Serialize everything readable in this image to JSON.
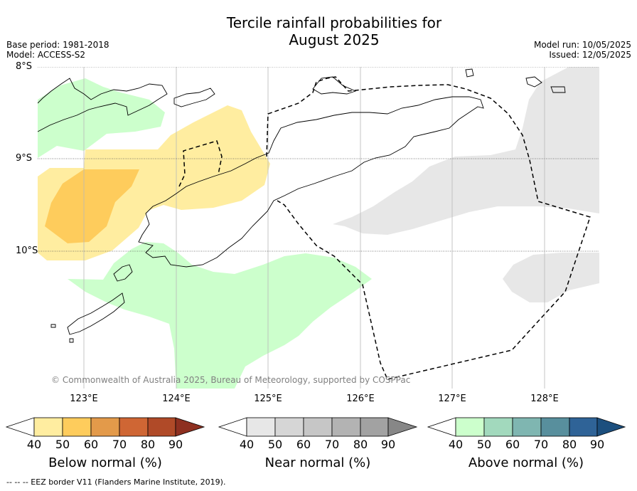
{
  "header": {
    "title_line1": "Tercile rainfall probabilities for",
    "title_line2": "August 2025",
    "base_period": "Base period: 1981-2018",
    "model": "Model: ACCESS-S2",
    "model_run": "Model run: 10/05/2025",
    "issued": "Issued: 12/05/2025"
  },
  "map": {
    "lat_labels": [
      "8°S",
      "9°S",
      "10°S"
    ],
    "lon_labels": [
      "123°E",
      "124°E",
      "125°E",
      "126°E",
      "127°E",
      "128°E"
    ],
    "copyright": "© Commonwealth of Australia 2025, Bureau of Meteorology, supported by COSPPac",
    "colors": {
      "below_40": "#ffeda0",
      "below_50": "#fecc5c",
      "near_40": "#e7e7e7",
      "above_40": "#ccffcc",
      "grid": "#b0b0b0",
      "coast": "#000000"
    }
  },
  "colorbars": [
    {
      "title": "Below normal (%)",
      "ticks": [
        "40",
        "50",
        "60",
        "70",
        "80",
        "90"
      ],
      "colors": [
        "#ffffff",
        "#ffeda0",
        "#fecc5c",
        "#e39a4a",
        "#cf6634",
        "#b04a28",
        "#8e3020"
      ]
    },
    {
      "title": "Near normal (%)",
      "ticks": [
        "40",
        "50",
        "60",
        "70",
        "80",
        "90"
      ],
      "colors": [
        "#ffffff",
        "#e7e7e7",
        "#d6d6d6",
        "#c6c6c6",
        "#b3b3b3",
        "#a2a2a2",
        "#878787"
      ]
    },
    {
      "title": "Above normal (%)",
      "ticks": [
        "40",
        "50",
        "60",
        "70",
        "80",
        "90"
      ],
      "colors": [
        "#ffffff",
        "#ccffcc",
        "#a2d9bd",
        "#7fb6b1",
        "#588f9d",
        "#2f6397",
        "#1c4f7e"
      ]
    }
  ],
  "footnote": "--  --  -- EEZ border V11 (Flanders Marine Institute, 2019)."
}
